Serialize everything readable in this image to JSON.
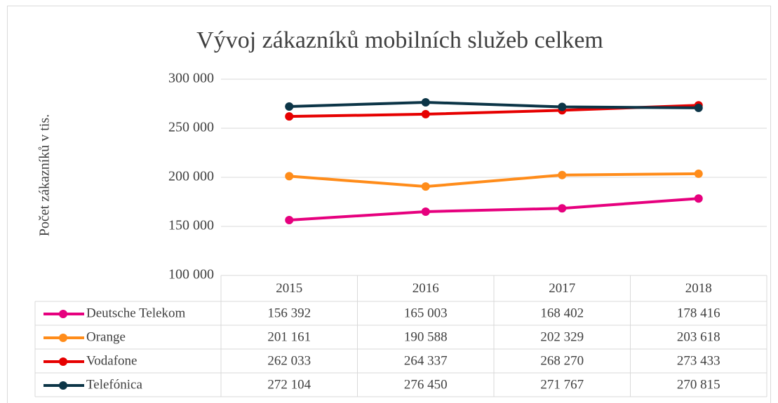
{
  "chart_data": {
    "type": "line",
    "title": "Vývoj zákazníků mobilních služeb celkem",
    "y_label": "Počet zákazníků v tis.",
    "categories": [
      "2015",
      "2016",
      "2017",
      "2018"
    ],
    "series": [
      {
        "name": "Deutsche Telekom",
        "color": "#e6007e",
        "values": [
          156392,
          165003,
          168402,
          178416
        ],
        "value_labels": [
          "156 392",
          "165 003",
          "168 402",
          "178 416"
        ]
      },
      {
        "name": "Orange",
        "color": "#ff8c1a",
        "values": [
          201161,
          190588,
          202329,
          203618
        ],
        "value_labels": [
          "201 161",
          "190 588",
          "202 329",
          "203 618"
        ]
      },
      {
        "name": "Vodafone",
        "color": "#e60000",
        "values": [
          262033,
          264337,
          268270,
          273433
        ],
        "value_labels": [
          "262 033",
          "264 337",
          "268 270",
          "273 433"
        ]
      },
      {
        "name": "Telefónica",
        "color": "#0c3547",
        "values": [
          272104,
          276450,
          271767,
          270815
        ],
        "value_labels": [
          "272 104",
          "276 450",
          "271 767",
          "270 815"
        ]
      }
    ],
    "ylim": [
      100000,
      300000
    ],
    "yticks": [
      {
        "value": 100000,
        "label": "100 000"
      },
      {
        "value": 150000,
        "label": "150 000"
      },
      {
        "value": 200000,
        "label": "200 000"
      },
      {
        "value": 250000,
        "label": "250 000"
      },
      {
        "value": 300000,
        "label": "300 000"
      }
    ],
    "grid": true
  }
}
